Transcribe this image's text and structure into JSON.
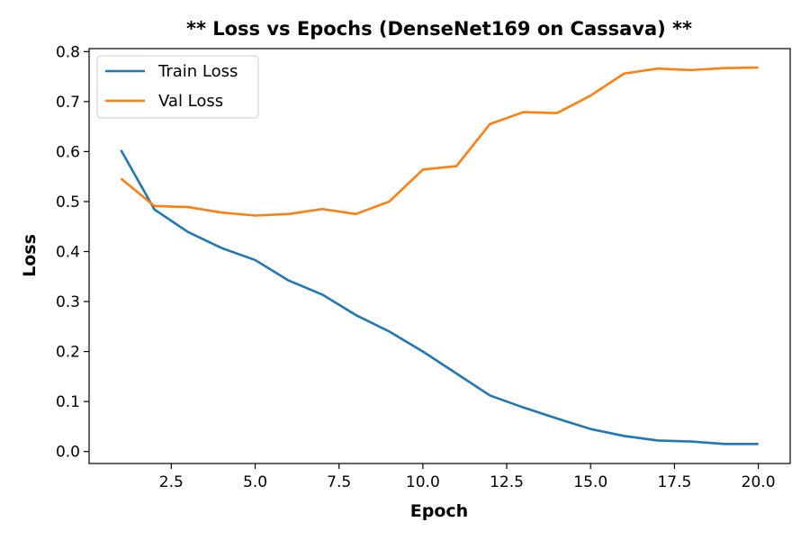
{
  "chart_data": {
    "type": "line",
    "title": "** Loss vs Epochs (DenseNet169 on Cassava) **",
    "xlabel": "Epoch",
    "ylabel": "Loss",
    "xlim": [
      0.05,
      20.95
    ],
    "ylim": [
      -0.024,
      0.806
    ],
    "xticks": [
      2.5,
      5.0,
      7.5,
      10.0,
      12.5,
      15.0,
      17.5,
      20.0
    ],
    "xtick_labels": [
      "2.5",
      "5.0",
      "7.5",
      "10.0",
      "12.5",
      "15.0",
      "17.5",
      "20.0"
    ],
    "yticks": [
      0.0,
      0.1,
      0.2,
      0.3,
      0.4,
      0.5,
      0.6,
      0.7,
      0.8
    ],
    "ytick_labels": [
      "0.0",
      "0.1",
      "0.2",
      "0.3",
      "0.4",
      "0.5",
      "0.6",
      "0.7",
      "0.8"
    ],
    "grid": false,
    "legend": "top-left",
    "x": [
      1,
      2,
      3,
      4,
      5,
      6,
      7,
      8,
      9,
      10,
      11,
      12,
      13,
      14,
      15,
      16,
      17,
      18,
      19,
      20
    ],
    "series": [
      {
        "name": "Train Loss",
        "color": "#1f77b4",
        "values": [
          0.603,
          0.484,
          0.439,
          0.407,
          0.383,
          0.342,
          0.314,
          0.273,
          0.24,
          0.2,
          0.156,
          0.112,
          0.088,
          0.066,
          0.045,
          0.031,
          0.022,
          0.02,
          0.015,
          0.015
        ]
      },
      {
        "name": "Val Loss",
        "color": "#ff7f0e",
        "values": [
          0.546,
          0.491,
          0.489,
          0.478,
          0.472,
          0.475,
          0.485,
          0.475,
          0.5,
          0.564,
          0.571,
          0.655,
          0.679,
          0.677,
          0.712,
          0.756,
          0.766,
          0.763,
          0.767,
          0.768
        ]
      }
    ]
  }
}
